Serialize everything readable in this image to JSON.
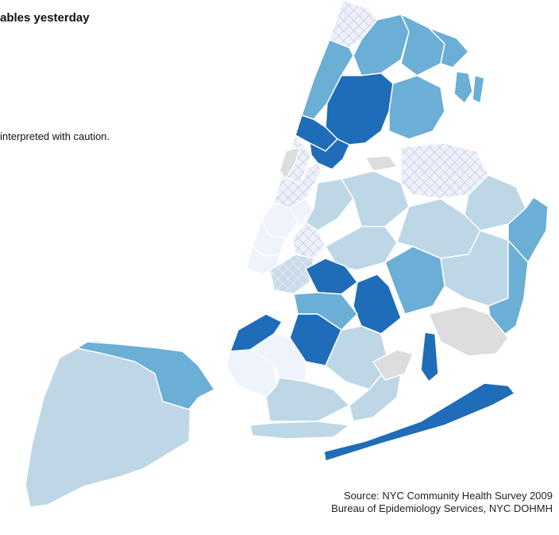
{
  "header": {
    "title": "ables yesterday",
    "caution_note": "interpreted with caution."
  },
  "source": {
    "line1": "Source: NYC Community Health Survey 2009",
    "line2": "Bureau of Epidemiology Services, NYC DOHMH"
  },
  "legend_colors": {
    "highest": "#1f6cb8",
    "high": "#6baed6",
    "medium": "#bdd7e7",
    "low": "#eef3fc",
    "no_data": "#dddddd",
    "hatched_interpret_with_caution": "#cfd8ea"
  }
}
